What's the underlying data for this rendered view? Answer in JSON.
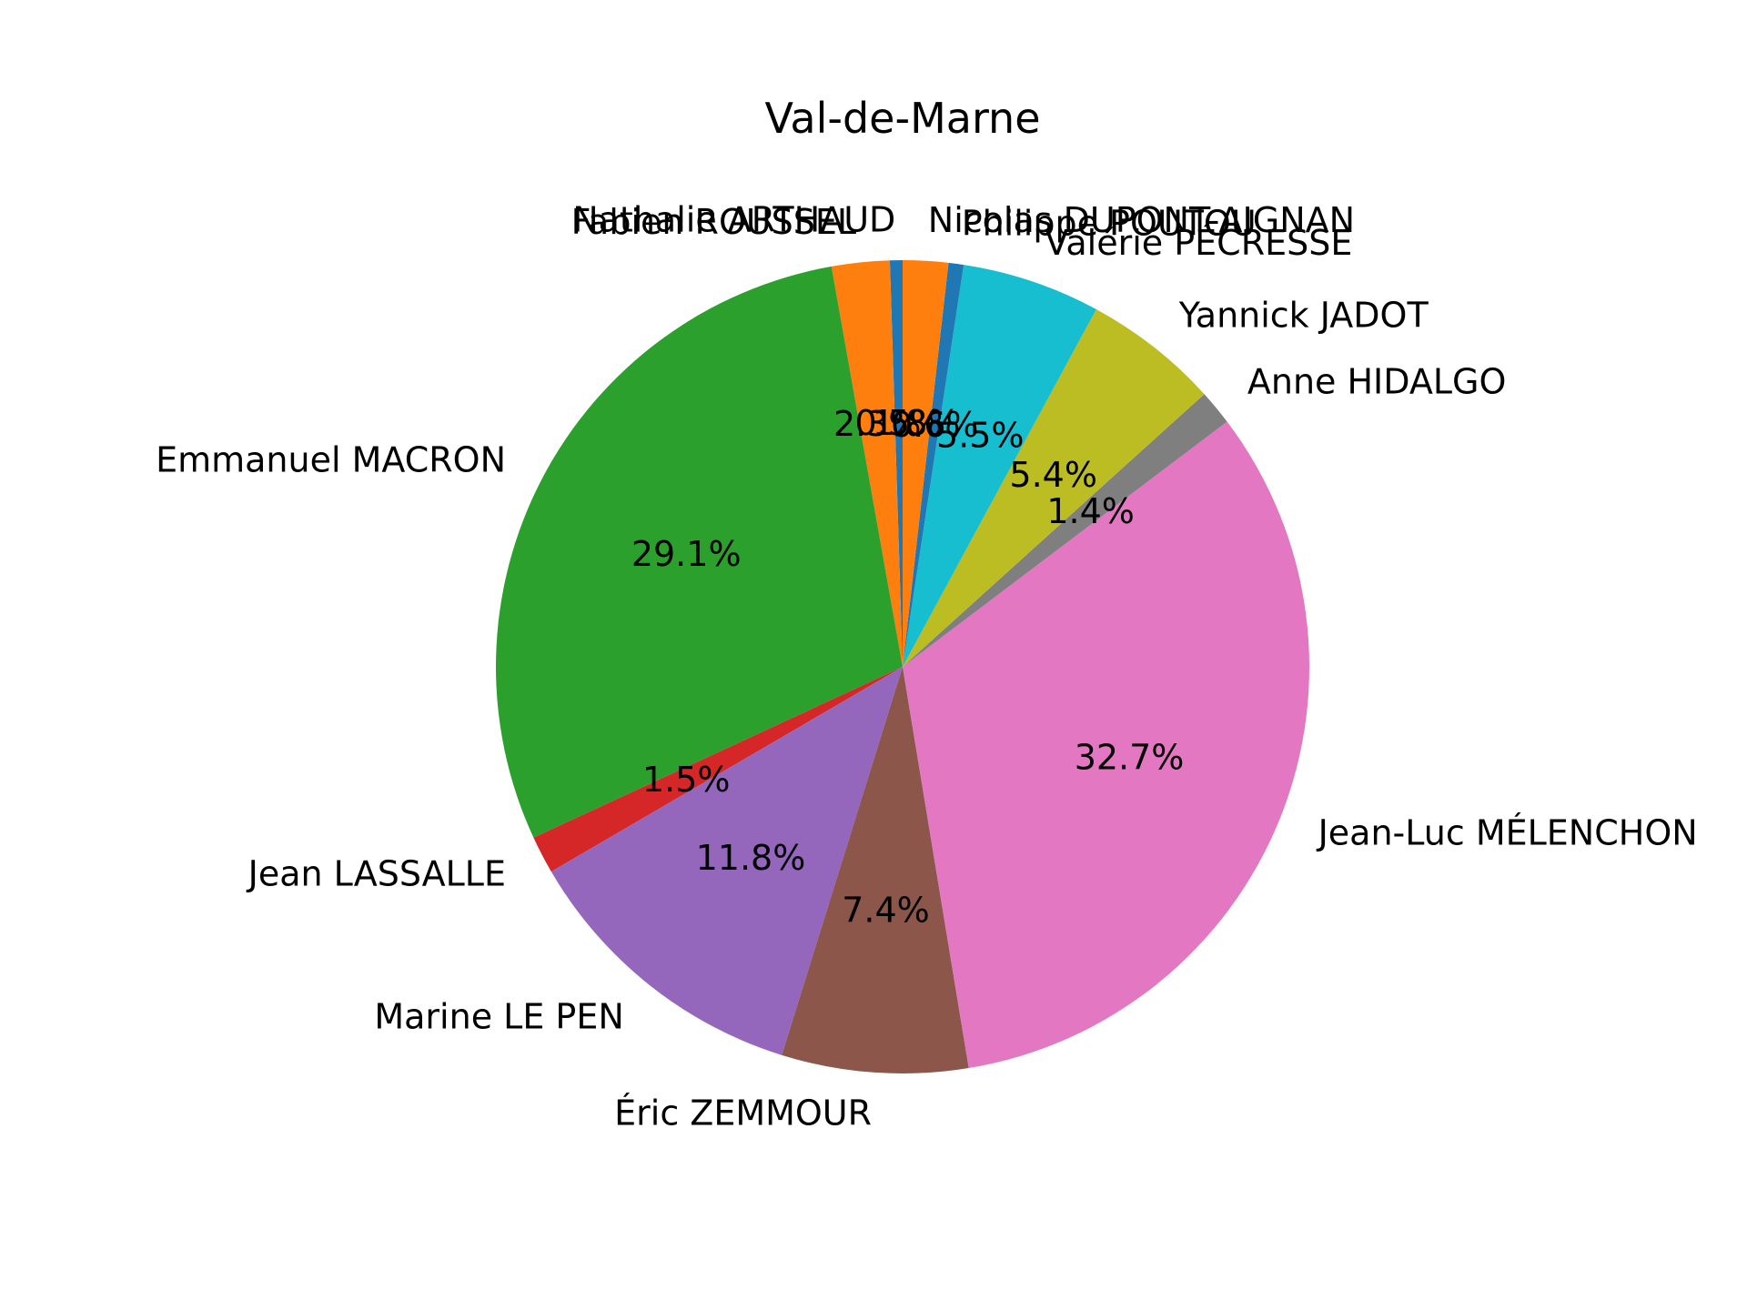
{
  "chart_data": {
    "type": "pie",
    "title": "Val-de-Marne",
    "labels": [
      "Nathalie ARTHAUD",
      "Fabien ROUSSEL",
      "Emmanuel MACRON",
      "Jean LASSALLE",
      "Marine LE PEN",
      "Éric ZEMMOUR",
      "Jean-Luc MÉLENCHON",
      "Anne HIDALGO",
      "Yannick JADOT",
      "Valérie PÉCRESSE",
      "Philippe POUTOU",
      "Nicolas DUPONT-AIGNAN"
    ],
    "values": [
      0.5,
      2.3,
      29.1,
      1.5,
      11.8,
      7.4,
      32.7,
      1.4,
      5.4,
      5.5,
      0.6,
      1.8
    ],
    "percent_labels": [
      "0.5%",
      "2.3%",
      "29.1%",
      "1.5%",
      "11.8%",
      "7.4%",
      "32.7%",
      "1.4%",
      "5.4%",
      "5.5%",
      "0.6%",
      "1.8%"
    ],
    "colors": [
      "#1f77b4",
      "#ff7f0e",
      "#2ca02c",
      "#d62728",
      "#9467bd",
      "#8c564b",
      "#e377c2",
      "#7f7f7f",
      "#bcbd22",
      "#17becf",
      "#1f77b4",
      "#ff7f0e"
    ],
    "start_angle_deg": 90,
    "direction": "counterclockwise",
    "legend": "none"
  }
}
